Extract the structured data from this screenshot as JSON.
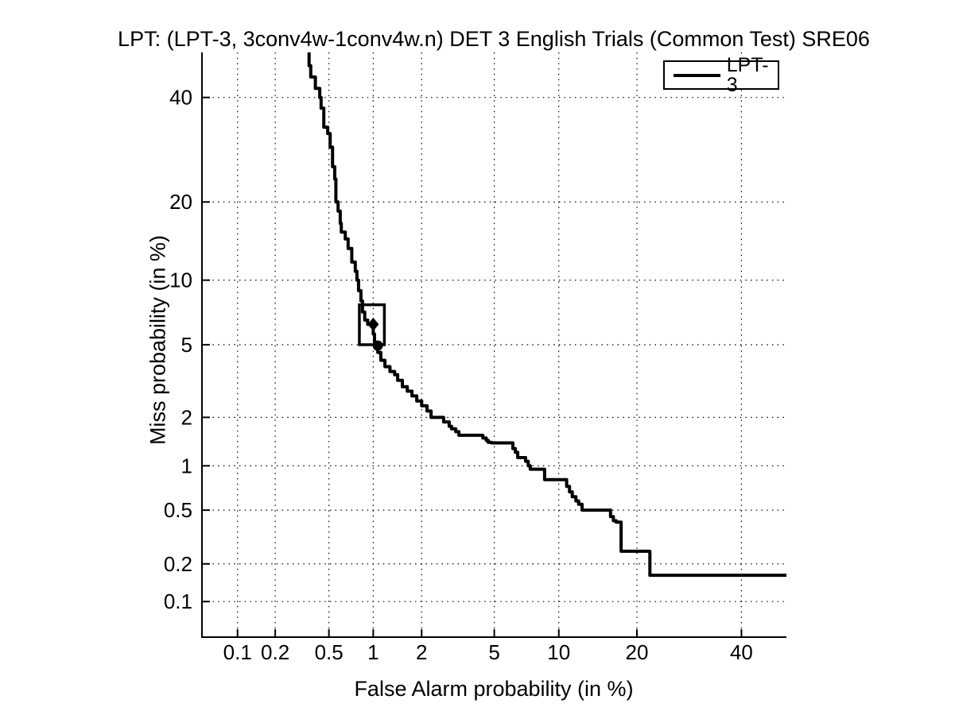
{
  "chart_data": {
    "type": "line",
    "subtype": "DET curve",
    "title": "LPT: (LPT-3, 3conv4w-1conv4w.n) DET 3 English Trials (Common Test) SRE06",
    "xlabel": "False Alarm probability (in %)",
    "ylabel": "Miss probability (in %)",
    "xscale": "probit",
    "yscale": "probit",
    "xlim": [
      0.05,
      50
    ],
    "ylim": [
      0.05,
      50
    ],
    "xticks": [
      0.1,
      0.2,
      0.5,
      1,
      2,
      5,
      10,
      20,
      40
    ],
    "yticks": [
      0.1,
      0.2,
      0.5,
      1,
      2,
      5,
      10,
      20,
      40
    ],
    "xtick_labels": [
      "0.1",
      "0.2",
      "0.5",
      "1",
      "2",
      "5",
      "10",
      "20",
      "40"
    ],
    "ytick_labels": [
      "0.1",
      "0.2",
      "0.5",
      "1",
      "2",
      "5",
      "10",
      "20",
      "40"
    ],
    "grid": "dotted",
    "grid_color": "#000000",
    "legend": {
      "position": "top-right",
      "entries": [
        {
          "label": "LPT-3",
          "color": "#000000"
        }
      ]
    },
    "series": [
      {
        "name": "LPT-3",
        "color": "#000000",
        "line_width": 4,
        "step": "vertical-first",
        "points": [
          [
            0.36,
            50
          ],
          [
            0.37,
            47
          ],
          [
            0.4,
            44.5
          ],
          [
            0.43,
            42
          ],
          [
            0.44,
            40
          ],
          [
            0.46,
            37.7
          ],
          [
            0.49,
            33.7
          ],
          [
            0.51,
            32.4
          ],
          [
            0.53,
            29.7
          ],
          [
            0.55,
            26.0
          ],
          [
            0.56,
            23.8
          ],
          [
            0.58,
            20.0
          ],
          [
            0.6,
            18.6
          ],
          [
            0.61,
            16.8
          ],
          [
            0.65,
            15.6
          ],
          [
            0.68,
            14.7
          ],
          [
            0.72,
            13.5
          ],
          [
            0.76,
            11.9
          ],
          [
            0.78,
            10.9
          ],
          [
            0.8,
            10.0
          ],
          [
            0.83,
            9.0
          ],
          [
            0.85,
            8.1
          ],
          [
            0.88,
            7.2
          ],
          [
            0.92,
            6.6
          ],
          [
            1.0,
            6.3
          ],
          [
            1.02,
            5.65
          ],
          [
            1.07,
            4.95
          ],
          [
            1.12,
            4.57
          ],
          [
            1.19,
            4.16
          ],
          [
            1.28,
            3.85
          ],
          [
            1.37,
            3.63
          ],
          [
            1.43,
            3.49
          ],
          [
            1.53,
            3.25
          ],
          [
            1.64,
            3.0
          ],
          [
            1.75,
            2.83
          ],
          [
            1.87,
            2.66
          ],
          [
            2.0,
            2.49
          ],
          [
            2.15,
            2.34
          ],
          [
            2.27,
            2.18
          ],
          [
            2.34,
            2.0
          ],
          [
            2.68,
            2.0
          ],
          [
            2.88,
            1.88
          ],
          [
            2.97,
            1.77
          ],
          [
            3.13,
            1.71
          ],
          [
            3.26,
            1.64
          ],
          [
            3.35,
            1.56
          ],
          [
            4.37,
            1.56
          ],
          [
            4.55,
            1.5
          ],
          [
            4.66,
            1.45
          ],
          [
            4.83,
            1.41
          ],
          [
            5.06,
            1.4
          ],
          [
            6.18,
            1.4
          ],
          [
            6.35,
            1.29
          ],
          [
            6.52,
            1.22
          ],
          [
            6.7,
            1.13
          ],
          [
            7.1,
            1.13
          ],
          [
            7.3,
            1.07
          ],
          [
            7.46,
            1.0
          ],
          [
            7.79,
            0.95
          ],
          [
            8.67,
            0.95
          ],
          [
            8.67,
            0.81
          ],
          [
            10.8,
            0.81
          ],
          [
            11.1,
            0.73
          ],
          [
            11.4,
            0.67
          ],
          [
            11.8,
            0.62
          ],
          [
            12.1,
            0.58
          ],
          [
            12.5,
            0.55
          ],
          [
            12.6,
            0.5
          ],
          [
            16.1,
            0.5
          ],
          [
            16.5,
            0.45
          ],
          [
            16.9,
            0.42
          ],
          [
            17.6,
            0.41
          ],
          [
            17.6,
            0.25
          ],
          [
            22.1,
            0.25
          ],
          [
            22.1,
            0.163
          ],
          [
            50,
            0.163
          ]
        ]
      }
    ],
    "markers": [
      {
        "shape": "diamond",
        "x": 1.0,
        "y": 6.3,
        "color": "#000000"
      },
      {
        "shape": "circle",
        "x": 1.07,
        "y": 4.95,
        "color": "#000000"
      }
    ],
    "annotation_box": {
      "x_range": [
        0.81,
        1.18
      ],
      "y_range": [
        5.0,
        7.78
      ],
      "color": "#000000",
      "line_width": 3.5
    }
  }
}
